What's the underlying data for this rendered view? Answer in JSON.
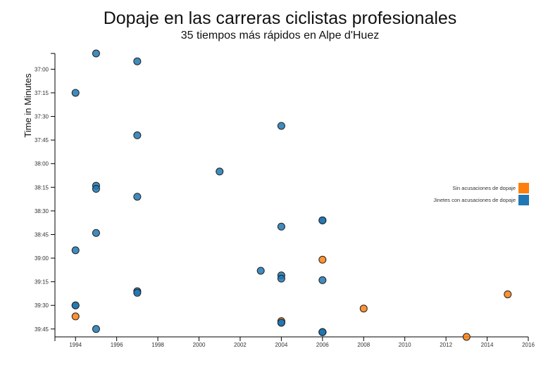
{
  "chart_data": {
    "type": "scatter",
    "title": "Dopaje en las carreras ciclistas profesionales",
    "subtitle": "35 tiempos más rápidos en Alpe d'Huez",
    "xlabel": "",
    "ylabel": "Time in Minutes",
    "xlim": [
      1993,
      2016
    ],
    "ylim_seconds": [
      2210,
      2390
    ],
    "x_ticks": [
      1994,
      1996,
      1998,
      2000,
      2002,
      2004,
      2006,
      2008,
      2010,
      2012,
      2014,
      2016
    ],
    "y_ticks": [
      "37:00",
      "37:15",
      "37:30",
      "37:45",
      "38:00",
      "38:15",
      "38:30",
      "38:45",
      "39:00",
      "39:15",
      "39:30",
      "39:45"
    ],
    "y_ticks_seconds": [
      2220,
      2235,
      2250,
      2265,
      2280,
      2295,
      2310,
      2325,
      2340,
      2355,
      2370,
      2385
    ],
    "y_reversed": true,
    "legend_position": "right",
    "colors": {
      "no_doping": "#ff7f0e",
      "doping": "#1f77b4"
    },
    "series": [
      {
        "name": "Sin acusaciones de dopaje",
        "color_key": "no_doping",
        "points": [
          {
            "x": 1994,
            "y": "39:37"
          },
          {
            "x": 2004,
            "y": "39:40"
          },
          {
            "x": 2006,
            "y": "39:01"
          },
          {
            "x": 2008,
            "y": "39:32"
          },
          {
            "x": 2013,
            "y": "39:50"
          },
          {
            "x": 2015,
            "y": "39:23"
          }
        ]
      },
      {
        "name": "Jinetes con acusaciones de dopaje",
        "color_key": "doping",
        "points": [
          {
            "x": 1995,
            "y": "36:50"
          },
          {
            "x": 1997,
            "y": "36:55"
          },
          {
            "x": 1994,
            "y": "37:15"
          },
          {
            "x": 2004,
            "y": "37:36"
          },
          {
            "x": 1997,
            "y": "37:42"
          },
          {
            "x": 2001,
            "y": "38:05"
          },
          {
            "x": 1995,
            "y": "38:14"
          },
          {
            "x": 1995,
            "y": "38:16"
          },
          {
            "x": 1997,
            "y": "38:21"
          },
          {
            "x": 2006,
            "y": "38:36"
          },
          {
            "x": 2006,
            "y": "38:36"
          },
          {
            "x": 2004,
            "y": "38:40"
          },
          {
            "x": 1995,
            "y": "38:44"
          },
          {
            "x": 1994,
            "y": "38:55"
          },
          {
            "x": 2003,
            "y": "39:08"
          },
          {
            "x": 2004,
            "y": "39:11"
          },
          {
            "x": 2004,
            "y": "39:13"
          },
          {
            "x": 2006,
            "y": "39:14"
          },
          {
            "x": 1997,
            "y": "39:21"
          },
          {
            "x": 1997,
            "y": "39:22"
          },
          {
            "x": 1994,
            "y": "39:30"
          },
          {
            "x": 1994,
            "y": "39:30"
          },
          {
            "x": 2004,
            "y": "39:41"
          },
          {
            "x": 2004,
            "y": "39:41"
          },
          {
            "x": 1995,
            "y": "39:45"
          },
          {
            "x": 2006,
            "y": "39:47"
          },
          {
            "x": 2006,
            "y": "39:47"
          },
          {
            "x": 2006,
            "y": "39:47"
          },
          {
            "x": 2006,
            "y": "39:47"
          }
        ]
      }
    ]
  }
}
